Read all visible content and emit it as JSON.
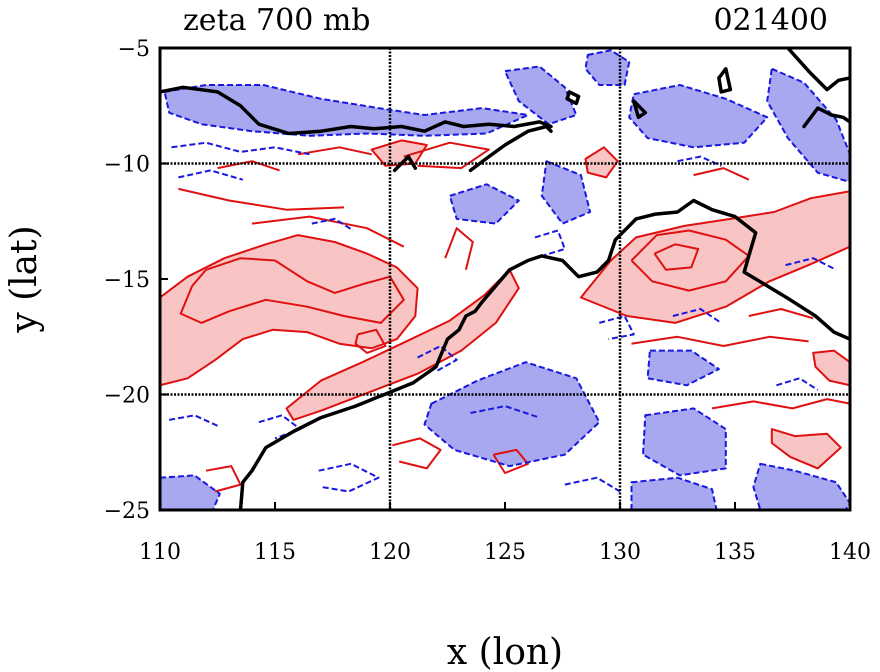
{
  "title_left": "zeta 700 mb",
  "title_right": "021400",
  "x_axis": {
    "label": "x (lon)",
    "min": 110,
    "max": 140,
    "ticks": [
      {
        "value": 110,
        "label": "110"
      },
      {
        "value": 115,
        "label": "115"
      },
      {
        "value": 120,
        "label": "120"
      },
      {
        "value": 125,
        "label": "125"
      },
      {
        "value": 130,
        "label": "130"
      },
      {
        "value": 135,
        "label": "135"
      },
      {
        "value": 140,
        "label": "140"
      }
    ],
    "grid": [
      120,
      130
    ]
  },
  "y_axis": {
    "label": "y (lat)",
    "min": -25,
    "max": -5,
    "ticks": [
      {
        "value": -5,
        "label": "−5"
      },
      {
        "value": -10,
        "label": "−10"
      },
      {
        "value": -15,
        "label": "−15"
      },
      {
        "value": -20,
        "label": "−20"
      },
      {
        "value": -25,
        "label": "−25"
      }
    ],
    "grid": [
      -10,
      -20
    ]
  },
  "colors": {
    "positive_fill": "#f8c4c4",
    "positive_line": "#e01010",
    "negative_fill": "#a8a8f0",
    "negative_line": "#1818e0",
    "coast": "#000000"
  },
  "coastline": [
    [
      [
        113.5,
        -25
      ],
      [
        113.6,
        -23.8
      ],
      [
        114,
        -23.3
      ],
      [
        114.6,
        -22.3
      ],
      [
        115.8,
        -21.6
      ],
      [
        117,
        -21
      ],
      [
        118.5,
        -20.5
      ],
      [
        120,
        -19.9
      ],
      [
        121,
        -19.5
      ],
      [
        122,
        -18.8
      ],
      [
        122.5,
        -17.6
      ],
      [
        123,
        -17.2
      ],
      [
        123.3,
        -16.6
      ],
      [
        123.7,
        -16.4
      ],
      [
        124,
        -16
      ],
      [
        124.6,
        -15.3
      ],
      [
        125.2,
        -14.6
      ],
      [
        126,
        -14.2
      ],
      [
        126.6,
        -14
      ],
      [
        127.5,
        -14.2
      ],
      [
        128.2,
        -14.9
      ],
      [
        129,
        -14.7
      ],
      [
        129.5,
        -14.2
      ],
      [
        129.8,
        -13.3
      ],
      [
        130.3,
        -12.8
      ],
      [
        130.7,
        -12.4
      ],
      [
        131.5,
        -12.2
      ],
      [
        132.5,
        -12.1
      ],
      [
        133.2,
        -11.6
      ],
      [
        134,
        -12
      ],
      [
        135,
        -12.3
      ],
      [
        135.9,
        -13
      ],
      [
        135.6,
        -14
      ],
      [
        135.4,
        -14.7
      ],
      [
        136.4,
        -15.3
      ],
      [
        137.4,
        -15.9
      ],
      [
        138.5,
        -16.6
      ],
      [
        139.3,
        -17.3
      ],
      [
        140,
        -17.6
      ]
    ],
    [
      [
        110,
        -6.9
      ],
      [
        111,
        -6.7
      ],
      [
        112.5,
        -6.9
      ],
      [
        113.5,
        -7.5
      ],
      [
        114.3,
        -8.3
      ],
      [
        115.6,
        -8.7
      ],
      [
        117,
        -8.6
      ],
      [
        118.3,
        -8.4
      ],
      [
        119.3,
        -8.5
      ],
      [
        120.5,
        -8.4
      ],
      [
        121.5,
        -8.6
      ],
      [
        122.4,
        -8.2
      ],
      [
        123.2,
        -8.4
      ],
      [
        124.3,
        -8.3
      ],
      [
        125.4,
        -8.4
      ],
      [
        126.5,
        -8.2
      ],
      [
        127,
        -8.4
      ]
    ],
    [
      [
        123.5,
        -10.3
      ],
      [
        124.3,
        -9.7
      ],
      [
        125,
        -9.2
      ],
      [
        126,
        -8.6
      ],
      [
        126.8,
        -8.4
      ],
      [
        127,
        -8.6
      ]
    ],
    [
      [
        120.2,
        -10.3
      ],
      [
        120.8,
        -9.7
      ],
      [
        121.1,
        -10.2
      ]
    ],
    [
      [
        127.8,
        -6.9
      ],
      [
        128.2,
        -7.1
      ],
      [
        128.1,
        -7.4
      ],
      [
        127.7,
        -7.2
      ],
      [
        127.8,
        -6.9
      ]
    ],
    [
      [
        130.6,
        -7.3
      ],
      [
        130.8,
        -8.0
      ],
      [
        131.1,
        -7.8
      ],
      [
        130.6,
        -7.3
      ]
    ],
    [
      [
        134.3,
        -6.3
      ],
      [
        134.6,
        -5.9
      ],
      [
        134.8,
        -6.8
      ],
      [
        134.4,
        -6.9
      ],
      [
        134.3,
        -6.3
      ]
    ],
    [
      [
        138,
        -8.4
      ],
      [
        138.6,
        -7.6
      ],
      [
        139.2,
        -7.9
      ],
      [
        139.7,
        -8.0
      ],
      [
        140,
        -8.2
      ]
    ],
    [
      [
        137.3,
        -5
      ],
      [
        138.2,
        -6
      ],
      [
        139,
        -6.8
      ],
      [
        139.5,
        -6.4
      ],
      [
        140,
        -6.3
      ]
    ]
  ],
  "positive_regions": [
    [
      [
        110,
        -15.8
      ],
      [
        111.2,
        -14.9
      ],
      [
        112.8,
        -14.1
      ],
      [
        114.6,
        -13.5
      ],
      [
        116,
        -13.1
      ],
      [
        117.6,
        -13.4
      ],
      [
        119,
        -13.9
      ],
      [
        120.3,
        -14.5
      ],
      [
        121.2,
        -15.4
      ],
      [
        121.1,
        -16.6
      ],
      [
        120.3,
        -17.6
      ],
      [
        119.2,
        -18
      ],
      [
        117.8,
        -17.8
      ],
      [
        116.4,
        -17.3
      ],
      [
        114.9,
        -17.2
      ],
      [
        113.6,
        -17.6
      ],
      [
        112.4,
        -18.5
      ],
      [
        111.2,
        -19.3
      ],
      [
        110,
        -19.6
      ]
    ],
    [
      [
        115.5,
        -20.6
      ],
      [
        117,
        -19.4
      ],
      [
        118.8,
        -18.6
      ],
      [
        120.5,
        -17.8
      ],
      [
        122.6,
        -16.8
      ],
      [
        124.1,
        -15.7
      ],
      [
        125.2,
        -14.6
      ],
      [
        125.6,
        -15.4
      ],
      [
        124.6,
        -16.9
      ],
      [
        123.1,
        -18.1
      ],
      [
        121.2,
        -19.1
      ],
      [
        119.1,
        -19.9
      ],
      [
        117,
        -20.7
      ],
      [
        115.8,
        -21.1
      ]
    ],
    [
      [
        128.3,
        -15.8
      ],
      [
        129.6,
        -14.2
      ],
      [
        130.7,
        -13.2
      ],
      [
        132.8,
        -12.7
      ],
      [
        134.8,
        -12.4
      ],
      [
        136.7,
        -12.1
      ],
      [
        138.3,
        -11.5
      ],
      [
        140,
        -11.2
      ],
      [
        140,
        -13.6
      ],
      [
        138.2,
        -14.4
      ],
      [
        136.5,
        -15.1
      ],
      [
        134.6,
        -16.2
      ],
      [
        132.4,
        -16.9
      ],
      [
        130.3,
        -16.6
      ]
    ],
    [
      [
        136.6,
        -21.5
      ],
      [
        137.6,
        -21.8
      ],
      [
        139,
        -21.7
      ],
      [
        139.6,
        -22.3
      ],
      [
        138.6,
        -23.2
      ],
      [
        137.4,
        -22.7
      ],
      [
        136.6,
        -22.1
      ]
    ],
    [
      [
        138.4,
        -18.2
      ],
      [
        139.3,
        -18.1
      ],
      [
        140,
        -18.6
      ],
      [
        140,
        -19.6
      ],
      [
        139.1,
        -19.4
      ],
      [
        138.5,
        -18.8
      ]
    ],
    [
      [
        128.5,
        -9.8
      ],
      [
        129.3,
        -9.3
      ],
      [
        129.9,
        -9.9
      ],
      [
        129.4,
        -10.6
      ],
      [
        128.6,
        -10.4
      ]
    ],
    [
      [
        119.2,
        -9.4
      ],
      [
        120.5,
        -9.0
      ],
      [
        121.6,
        -9.2
      ],
      [
        121.1,
        -10.0
      ],
      [
        119.8,
        -10.1
      ]
    ]
  ],
  "negative_regions": [
    [
      [
        110.2,
        -6.9
      ],
      [
        112,
        -6.6
      ],
      [
        114.5,
        -6.6
      ],
      [
        117,
        -7.2
      ],
      [
        119.5,
        -7.6
      ],
      [
        121.5,
        -7.9
      ],
      [
        124,
        -7.6
      ],
      [
        126,
        -7.9
      ],
      [
        124.2,
        -8.7
      ],
      [
        121.5,
        -8.8
      ],
      [
        119,
        -8.7
      ],
      [
        116.5,
        -8.8
      ],
      [
        114,
        -8.6
      ],
      [
        111.8,
        -8.3
      ],
      [
        110.4,
        -7.8
      ]
    ],
    [
      [
        125,
        -6
      ],
      [
        126.5,
        -5.8
      ],
      [
        127.6,
        -6.7
      ],
      [
        128.1,
        -7.9
      ],
      [
        126.9,
        -8.3
      ],
      [
        125.6,
        -7.3
      ]
    ],
    [
      [
        128.6,
        -5.3
      ],
      [
        129.6,
        -5.1
      ],
      [
        130.4,
        -5.6
      ],
      [
        130.2,
        -6.6
      ],
      [
        129.1,
        -6.6
      ],
      [
        128.5,
        -5.9
      ]
    ],
    [
      [
        130.6,
        -7
      ],
      [
        132.6,
        -6.6
      ],
      [
        134.6,
        -7.2
      ],
      [
        136.4,
        -8
      ],
      [
        135.4,
        -9.1
      ],
      [
        133.2,
        -9.3
      ],
      [
        131.2,
        -8.9
      ],
      [
        130.4,
        -8
      ]
    ],
    [
      [
        136.6,
        -5.9
      ],
      [
        138,
        -6.5
      ],
      [
        139.4,
        -8.1
      ],
      [
        140,
        -9.6
      ],
      [
        140,
        -10.8
      ],
      [
        138.6,
        -10.4
      ],
      [
        137.3,
        -8.9
      ],
      [
        136.4,
        -7.3
      ]
    ],
    [
      [
        126.8,
        -9.9
      ],
      [
        128.3,
        -10.5
      ],
      [
        128.7,
        -12.1
      ],
      [
        127.5,
        -12.6
      ],
      [
        126.6,
        -11.4
      ]
    ],
    [
      [
        121.8,
        -20.4
      ],
      [
        123.8,
        -19.4
      ],
      [
        125.9,
        -18.6
      ],
      [
        128.1,
        -19.3
      ],
      [
        129.1,
        -21.2
      ],
      [
        127.6,
        -22.6
      ],
      [
        125.2,
        -23.1
      ],
      [
        122.8,
        -22.4
      ],
      [
        121.5,
        -21.3
      ]
    ],
    [
      [
        131.1,
        -20.9
      ],
      [
        133.2,
        -20.6
      ],
      [
        134.6,
        -21.5
      ],
      [
        134.6,
        -23.2
      ],
      [
        132.6,
        -23.5
      ],
      [
        131,
        -22.6
      ]
    ],
    [
      [
        136.1,
        -23
      ],
      [
        137.6,
        -23.3
      ],
      [
        139.4,
        -23.8
      ],
      [
        140,
        -24.7
      ],
      [
        139.8,
        -25
      ],
      [
        136.1,
        -25
      ],
      [
        135.8,
        -24
      ]
    ],
    [
      [
        110,
        -23.6
      ],
      [
        111.5,
        -23.5
      ],
      [
        112.6,
        -24.3
      ],
      [
        112.3,
        -25
      ],
      [
        110,
        -25
      ]
    ],
    [
      [
        130.5,
        -23.8
      ],
      [
        132.5,
        -23.6
      ],
      [
        134,
        -24.1
      ],
      [
        134.2,
        -25
      ],
      [
        130.5,
        -25
      ]
    ],
    [
      [
        122.6,
        -11.4
      ],
      [
        124.2,
        -10.9
      ],
      [
        125.6,
        -11.6
      ],
      [
        124.6,
        -12.6
      ],
      [
        122.9,
        -12.4
      ]
    ],
    [
      [
        131.3,
        -18.1
      ],
      [
        133.1,
        -18.1
      ],
      [
        134.3,
        -18.9
      ],
      [
        132.9,
        -19.6
      ],
      [
        131.2,
        -19.3
      ]
    ]
  ],
  "positive_extra_lines": [
    [
      [
        112,
        -14.6
      ],
      [
        113.5,
        -14.1
      ],
      [
        115,
        -14.2
      ],
      [
        116.4,
        -15.1
      ],
      [
        117.6,
        -15.6
      ],
      [
        118.9,
        -15.2
      ],
      [
        120,
        -14.9
      ],
      [
        120.6,
        -15.9
      ],
      [
        119.6,
        -16.9
      ],
      [
        118,
        -16.6
      ],
      [
        116.4,
        -16.2
      ],
      [
        114.6,
        -15.9
      ],
      [
        113,
        -16.4
      ],
      [
        111.8,
        -16.9
      ],
      [
        110.9,
        -16.5
      ],
      [
        111.4,
        -15.3
      ],
      [
        112,
        -14.6
      ]
    ],
    [
      [
        114,
        -12.6
      ],
      [
        116.5,
        -12.3
      ],
      [
        119,
        -12.8
      ],
      [
        120.6,
        -13.6
      ]
    ],
    [
      [
        110.8,
        -11.1
      ],
      [
        113,
        -11.6
      ],
      [
        115.5,
        -12
      ],
      [
        118,
        -11.9
      ]
    ],
    [
      [
        118.6,
        -17.4
      ],
      [
        119.4,
        -17.2
      ],
      [
        119.8,
        -17.9
      ],
      [
        119,
        -18.2
      ],
      [
        118.5,
        -17.8
      ],
      [
        118.6,
        -17.4
      ]
    ],
    [
      [
        130.5,
        -14.2
      ],
      [
        131.6,
        -13.1
      ],
      [
        133,
        -12.9
      ],
      [
        134.6,
        -13.3
      ],
      [
        135.6,
        -14
      ],
      [
        134.6,
        -15.1
      ],
      [
        133,
        -15.5
      ],
      [
        131.4,
        -15.1
      ],
      [
        130.5,
        -14.2
      ]
    ],
    [
      [
        131.5,
        -13.9
      ],
      [
        132.4,
        -13.5
      ],
      [
        133.4,
        -13.7
      ],
      [
        133.1,
        -14.5
      ],
      [
        132,
        -14.6
      ],
      [
        131.5,
        -13.9
      ]
    ],
    [
      [
        120.6,
        -9.7
      ],
      [
        122.6,
        -9.1
      ],
      [
        124.3,
        -9.4
      ],
      [
        123.1,
        -10.2
      ],
      [
        121.2,
        -10.1
      ]
    ],
    [
      [
        116,
        -9.6
      ],
      [
        117.8,
        -9.3
      ],
      [
        119.2,
        -9.6
      ]
    ],
    [
      [
        134,
        -20.6
      ],
      [
        135.8,
        -20.3
      ],
      [
        137.5,
        -20.6
      ],
      [
        139,
        -20.2
      ],
      [
        140,
        -20.4
      ]
    ],
    [
      [
        130.5,
        -17.8
      ],
      [
        132.5,
        -17.5
      ],
      [
        134.5,
        -17.9
      ],
      [
        136.5,
        -17.5
      ],
      [
        138.2,
        -17.7
      ]
    ],
    [
      [
        120.1,
        -22.2
      ],
      [
        121.3,
        -21.9
      ],
      [
        122.2,
        -22.4
      ],
      [
        121.6,
        -23.2
      ],
      [
        120.4,
        -22.9
      ]
    ],
    [
      [
        112,
        -23.3
      ],
      [
        113.1,
        -23.1
      ],
      [
        113.5,
        -23.9
      ],
      [
        112.4,
        -24.2
      ]
    ],
    [
      [
        124.5,
        -22.6
      ],
      [
        125.5,
        -22.4
      ],
      [
        126,
        -23
      ],
      [
        125,
        -23.4
      ],
      [
        124.5,
        -22.6
      ]
    ],
    [
      [
        112.5,
        -10.2
      ],
      [
        114,
        -9.9
      ],
      [
        115.2,
        -10.3
      ]
    ],
    [
      [
        133.2,
        -10.5
      ],
      [
        134.5,
        -10.2
      ],
      [
        135.6,
        -10.7
      ]
    ],
    [
      [
        122.4,
        -14.1
      ],
      [
        122.9,
        -12.8
      ],
      [
        123.6,
        -13.4
      ],
      [
        123.3,
        -14.6
      ]
    ],
    [
      [
        135.6,
        -16.6
      ],
      [
        137,
        -16.3
      ],
      [
        138.4,
        -16.7
      ]
    ]
  ],
  "negative_extra_lines": [
    [
      [
        110.5,
        -9.3
      ],
      [
        112,
        -9.1
      ],
      [
        113.5,
        -9.5
      ],
      [
        115,
        -9.3
      ],
      [
        116.5,
        -9.6
      ]
    ],
    [
      [
        110.8,
        -10.6
      ],
      [
        112.2,
        -10.3
      ],
      [
        113.6,
        -10.7
      ]
    ],
    [
      [
        116.6,
        -12.6
      ],
      [
        117.6,
        -12.4
      ],
      [
        118.4,
        -12.9
      ]
    ],
    [
      [
        121.2,
        -18.4
      ],
      [
        122.2,
        -17.9
      ],
      [
        122.9,
        -18.5
      ],
      [
        122,
        -19
      ]
    ],
    [
      [
        114.3,
        -21.2
      ],
      [
        115.3,
        -20.9
      ],
      [
        116.1,
        -21.5
      ],
      [
        115,
        -21.9
      ]
    ],
    [
      [
        116.9,
        -23.3
      ],
      [
        118.3,
        -23
      ],
      [
        119.5,
        -23.6
      ],
      [
        118.2,
        -24.2
      ],
      [
        117,
        -24
      ]
    ],
    [
      [
        126.3,
        -13.2
      ],
      [
        127.3,
        -12.9
      ],
      [
        127.6,
        -13.7
      ],
      [
        126.6,
        -14
      ]
    ],
    [
      [
        129.1,
        -16.9
      ],
      [
        130.2,
        -16.6
      ],
      [
        130.6,
        -17.4
      ],
      [
        129.5,
        -17.6
      ]
    ],
    [
      [
        132.3,
        -16.6
      ],
      [
        133.5,
        -16.3
      ],
      [
        134.4,
        -16.9
      ]
    ],
    [
      [
        137.2,
        -14.4
      ],
      [
        138.4,
        -14.1
      ],
      [
        139.4,
        -14.6
      ]
    ],
    [
      [
        136.8,
        -19.6
      ],
      [
        137.8,
        -19.3
      ],
      [
        138.6,
        -19.8
      ]
    ],
    [
      [
        132.5,
        -9.9
      ],
      [
        133.5,
        -9.7
      ],
      [
        134.4,
        -10.1
      ]
    ],
    [
      [
        123.5,
        -20.8
      ],
      [
        125,
        -20.5
      ],
      [
        126.5,
        -21
      ]
    ],
    [
      [
        110.4,
        -21.1
      ],
      [
        111.5,
        -20.9
      ],
      [
        112.6,
        -21.4
      ]
    ],
    [
      [
        127.6,
        -23.9
      ],
      [
        129,
        -23.6
      ],
      [
        130,
        -24.2
      ]
    ]
  ]
}
